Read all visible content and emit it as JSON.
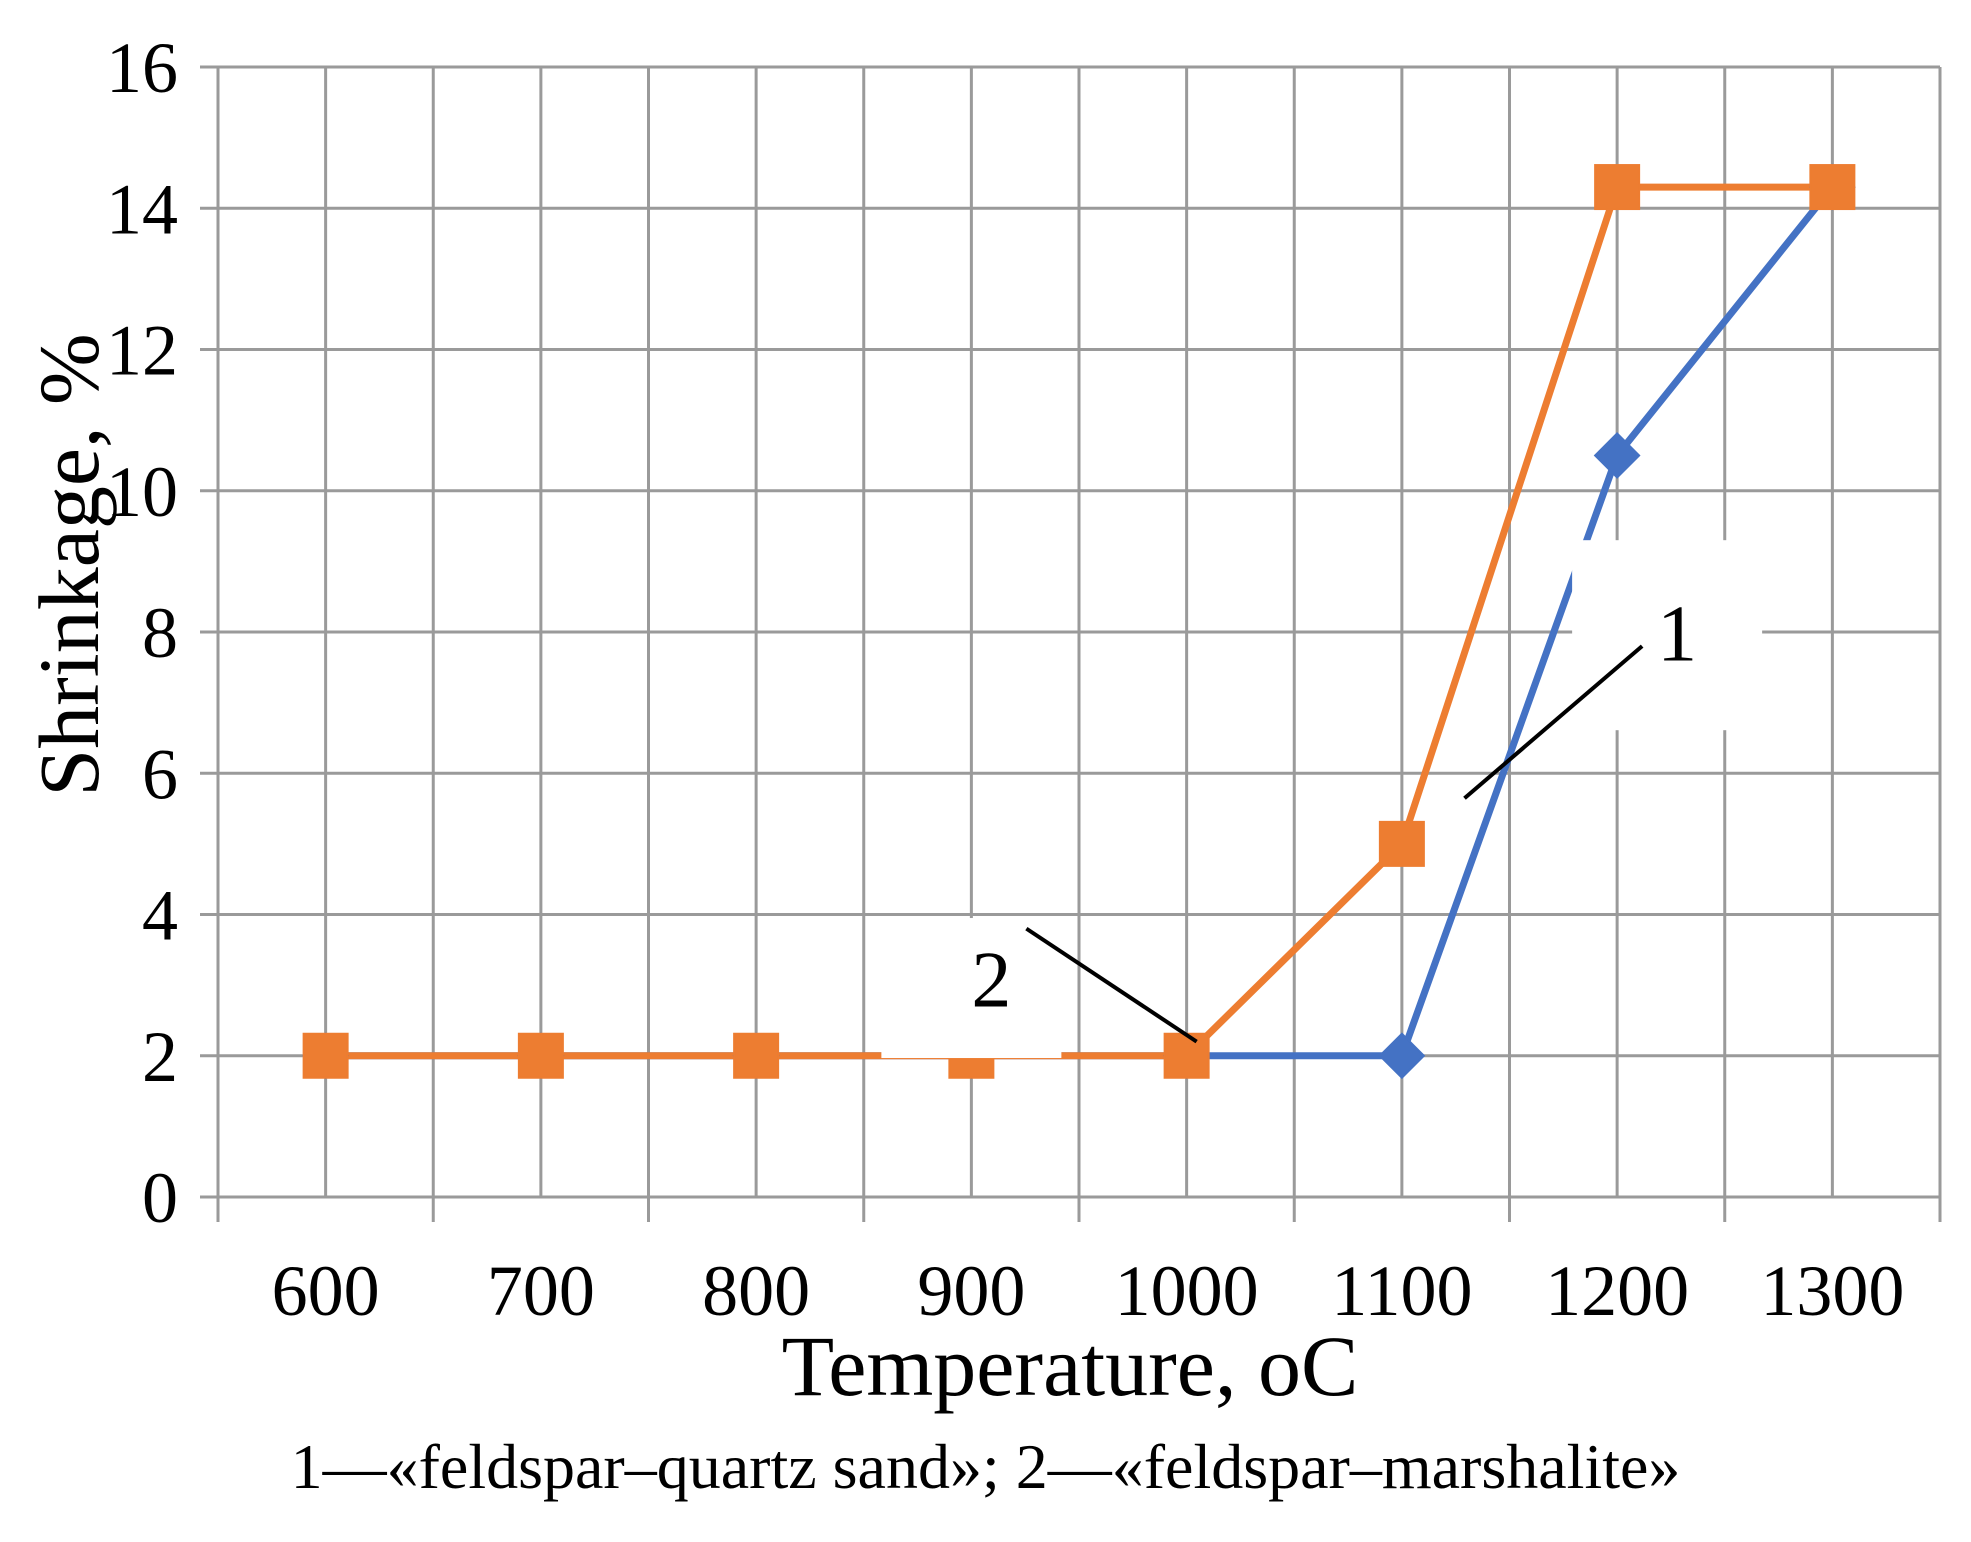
{
  "chart_data": {
    "type": "line",
    "title": "",
    "xlabel": "Temperature, ",
    "xlabel_unit": "oC",
    "ylabel": "Shrinkage, %",
    "categories": [
      "600",
      "700",
      "800",
      "900",
      "1000",
      "1100",
      "1200",
      "1300"
    ],
    "y_ticks": [
      "0",
      "2",
      "4",
      "6",
      "8",
      "10",
      "12",
      "14",
      "16"
    ],
    "ylim": [
      0,
      16
    ],
    "grid": true,
    "series": [
      {
        "name": "1",
        "label": "«feldspar–quartz sand»",
        "color": "#4472C4",
        "marker": "diamond",
        "values": [
          2,
          2,
          2,
          2,
          2,
          2,
          10.5,
          14.3
        ]
      },
      {
        "name": "2",
        "label": "«feldspar–marshalite»",
        "color": "#ED7D31",
        "marker": "square",
        "values": [
          2,
          2,
          2,
          2,
          2,
          5,
          14.3,
          14.3
        ]
      }
    ],
    "annotations": [
      {
        "text": "1",
        "series": "1"
      },
      {
        "text": "2",
        "series": "2"
      }
    ]
  },
  "caption": "1—«feldspar–quartz sand»; 2—«feldspar–marshalite»"
}
